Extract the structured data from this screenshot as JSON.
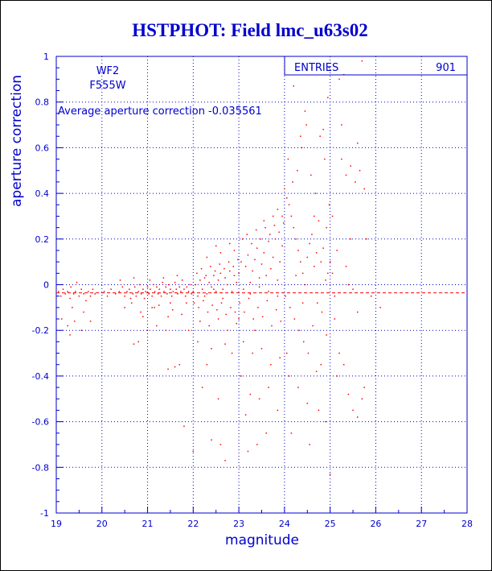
{
  "chart_data": {
    "type": "scatter",
    "title": "HSTPHOT: Field lmc_u63s02",
    "xlabel": "magnitude",
    "ylabel": "aperture correction",
    "xlim": [
      19,
      28
    ],
    "ylim": [
      -1,
      1
    ],
    "xticks": [
      "19",
      "20",
      "21",
      "22",
      "23",
      "24",
      "25",
      "26",
      "27",
      "28"
    ],
    "yticks": [
      "-1",
      "-0.8",
      "-0.6",
      "-0.4",
      "-0.2",
      "0",
      "0.2",
      "0.4",
      "0.6",
      "0.8",
      "1"
    ],
    "grid": true,
    "stats_box": {
      "entries_label": "ENTRIES",
      "entries_value": "901",
      "placement": "top-right"
    },
    "annotations": {
      "camera": "WF2",
      "filter": "F555W",
      "average_text": "Average aperture correction -0.035561"
    },
    "average_line": -0.035561,
    "points": [
      [
        19.05,
        -0.03
      ],
      [
        19.1,
        -0.05
      ],
      [
        19.15,
        -0.02
      ],
      [
        19.2,
        -0.04
      ],
      [
        19.25,
        -0.03
      ],
      [
        19.3,
        -0.06
      ],
      [
        19.32,
        -0.01
      ],
      [
        19.38,
        -0.04
      ],
      [
        19.42,
        -0.03
      ],
      [
        19.45,
        0.01
      ],
      [
        19.5,
        -0.05
      ],
      [
        19.55,
        -0.02
      ],
      [
        19.6,
        -0.04
      ],
      [
        19.65,
        -0.07
      ],
      [
        19.7,
        -0.03
      ],
      [
        19.75,
        -0.05
      ],
      [
        19.8,
        -0.02
      ],
      [
        19.85,
        -0.04
      ],
      [
        19.12,
        -0.15
      ],
      [
        19.25,
        -0.18
      ],
      [
        19.4,
        -0.16
      ],
      [
        19.55,
        -0.2
      ],
      [
        19.35,
        -0.1
      ],
      [
        19.6,
        -0.12
      ],
      [
        19.3,
        -0.22
      ],
      [
        19.75,
        -0.16
      ],
      [
        20.05,
        -0.03
      ],
      [
        20.12,
        -0.05
      ],
      [
        20.2,
        -0.02
      ],
      [
        20.3,
        -0.04
      ],
      [
        20.38,
        -0.03
      ],
      [
        20.45,
        -0.01
      ],
      [
        20.5,
        -0.05
      ],
      [
        20.55,
        -0.03
      ],
      [
        20.6,
        -0.02
      ],
      [
        20.63,
        -0.06
      ],
      [
        20.68,
        -0.04
      ],
      [
        20.72,
        -0.01
      ],
      [
        20.75,
        -0.05
      ],
      [
        20.8,
        -0.03
      ],
      [
        20.83,
        0.0
      ],
      [
        20.86,
        -0.04
      ],
      [
        20.9,
        -0.02
      ],
      [
        20.93,
        -0.06
      ],
      [
        20.96,
        -0.03
      ],
      [
        21.0,
        -0.01
      ],
      [
        21.03,
        -0.04
      ],
      [
        21.06,
        -0.02
      ],
      [
        21.1,
        -0.05
      ],
      [
        21.13,
        0.0
      ],
      [
        21.16,
        -0.03
      ],
      [
        21.2,
        -0.01
      ],
      [
        21.23,
        -0.04
      ],
      [
        21.26,
        -0.02
      ],
      [
        21.3,
        -0.05
      ],
      [
        21.33,
        0.01
      ],
      [
        21.36,
        -0.03
      ],
      [
        21.4,
        -0.01
      ],
      [
        21.43,
        -0.04
      ],
      [
        21.46,
        0.0
      ],
      [
        21.5,
        -0.02
      ],
      [
        21.53,
        -0.05
      ],
      [
        21.56,
        -0.03
      ],
      [
        21.6,
        0.01
      ],
      [
        21.63,
        -0.02
      ],
      [
        21.66,
        -0.04
      ],
      [
        21.7,
        -0.01
      ],
      [
        21.73,
        -0.03
      ],
      [
        21.76,
        0.02
      ],
      [
        21.8,
        -0.02
      ],
      [
        21.83,
        -0.05
      ],
      [
        21.86,
        -0.01
      ],
      [
        21.9,
        -0.03
      ],
      [
        21.93,
        0.0
      ],
      [
        21.96,
        -0.04
      ],
      [
        20.4,
        0.02
      ],
      [
        20.7,
        0.03
      ],
      [
        21.05,
        0.02
      ],
      [
        21.35,
        0.03
      ],
      [
        21.65,
        0.04
      ],
      [
        20.5,
        -0.1
      ],
      [
        20.65,
        -0.08
      ],
      [
        20.85,
        -0.12
      ],
      [
        21.1,
        -0.1
      ],
      [
        21.25,
        -0.09
      ],
      [
        21.45,
        -0.14
      ],
      [
        21.55,
        -0.11
      ],
      [
        21.75,
        -0.13
      ],
      [
        21.85,
        -0.08
      ],
      [
        20.9,
        -0.14
      ],
      [
        21.5,
        -0.08
      ],
      [
        21.2,
        -0.18
      ],
      [
        20.8,
        -0.25
      ],
      [
        20.7,
        -0.26
      ],
      [
        21.0,
        -0.2
      ],
      [
        21.45,
        -0.37
      ],
      [
        21.6,
        -0.36
      ],
      [
        21.8,
        -0.62
      ],
      [
        21.7,
        -0.35
      ],
      [
        21.9,
        -0.2
      ],
      [
        21.4,
        -0.2
      ],
      [
        21.15,
        -0.1
      ],
      [
        22.0,
        -0.03
      ],
      [
        22.05,
        0.0
      ],
      [
        22.1,
        -0.05
      ],
      [
        22.15,
        0.02
      ],
      [
        22.2,
        -0.02
      ],
      [
        22.25,
        0.03
      ],
      [
        22.3,
        -0.04
      ],
      [
        22.35,
        0.01
      ],
      [
        22.4,
        -0.01
      ],
      [
        22.45,
        0.04
      ],
      [
        22.5,
        -0.03
      ],
      [
        22.55,
        0.02
      ],
      [
        22.6,
        0.05
      ],
      [
        22.65,
        -0.02
      ],
      [
        22.7,
        0.03
      ],
      [
        22.75,
        0.0
      ],
      [
        22.8,
        0.06
      ],
      [
        22.85,
        -0.03
      ],
      [
        22.9,
        0.04
      ],
      [
        22.95,
        0.01
      ],
      [
        22.02,
        -0.08
      ],
      [
        22.12,
        -0.1
      ],
      [
        22.22,
        -0.07
      ],
      [
        22.32,
        -0.12
      ],
      [
        22.42,
        -0.09
      ],
      [
        22.52,
        -0.11
      ],
      [
        22.62,
        -0.08
      ],
      [
        22.72,
        -0.13
      ],
      [
        22.82,
        -0.1
      ],
      [
        22.92,
        -0.12
      ],
      [
        22.08,
        0.05
      ],
      [
        22.18,
        0.07
      ],
      [
        22.28,
        0.04
      ],
      [
        22.38,
        0.08
      ],
      [
        22.48,
        0.06
      ],
      [
        22.58,
        0.09
      ],
      [
        22.68,
        0.07
      ],
      [
        22.78,
        0.1
      ],
      [
        22.88,
        0.08
      ],
      [
        22.98,
        0.11
      ],
      [
        22.15,
        -0.16
      ],
      [
        22.35,
        -0.18
      ],
      [
        22.55,
        -0.15
      ],
      [
        22.75,
        -0.2
      ],
      [
        22.95,
        -0.17
      ],
      [
        22.3,
        0.12
      ],
      [
        22.6,
        0.14
      ],
      [
        22.9,
        0.15
      ],
      [
        22.1,
        -0.25
      ],
      [
        22.4,
        -0.28
      ],
      [
        22.7,
        -0.26
      ],
      [
        22.2,
        -0.45
      ],
      [
        22.55,
        -0.5
      ],
      [
        22.85,
        -0.3
      ],
      [
        22.6,
        -0.7
      ],
      [
        22.4,
        -0.68
      ],
      [
        22.7,
        -0.77
      ],
      [
        22.0,
        -0.73
      ],
      [
        22.3,
        -0.35
      ],
      [
        22.5,
        0.17
      ],
      [
        22.8,
        0.18
      ],
      [
        22.25,
        -0.05
      ],
      [
        22.65,
        -0.06
      ],
      [
        22.45,
        -0.02
      ],
      [
        23.0,
        0.05
      ],
      [
        23.05,
        0.1
      ],
      [
        23.1,
        -0.02
      ],
      [
        23.15,
        0.08
      ],
      [
        23.2,
        0.13
      ],
      [
        23.25,
        -0.04
      ],
      [
        23.3,
        0.06
      ],
      [
        23.35,
        0.11
      ],
      [
        23.4,
        0.16
      ],
      [
        23.45,
        -0.01
      ],
      [
        23.5,
        0.09
      ],
      [
        23.55,
        0.14
      ],
      [
        23.6,
        0.04
      ],
      [
        23.65,
        0.19
      ],
      [
        23.7,
        0.07
      ],
      [
        23.75,
        0.12
      ],
      [
        23.8,
        0.2
      ],
      [
        23.85,
        0.02
      ],
      [
        23.9,
        0.1
      ],
      [
        23.95,
        0.17
      ],
      [
        23.02,
        -0.08
      ],
      [
        23.12,
        -0.12
      ],
      [
        23.22,
        -0.06
      ],
      [
        23.32,
        -0.15
      ],
      [
        23.42,
        -0.1
      ],
      [
        23.52,
        -0.14
      ],
      [
        23.62,
        -0.07
      ],
      [
        23.72,
        -0.18
      ],
      [
        23.82,
        -0.11
      ],
      [
        23.92,
        -0.16
      ],
      [
        23.08,
        0.2
      ],
      [
        23.18,
        0.22
      ],
      [
        23.28,
        0.18
      ],
      [
        23.38,
        0.24
      ],
      [
        23.48,
        0.2
      ],
      [
        23.58,
        0.25
      ],
      [
        23.68,
        0.22
      ],
      [
        23.78,
        0.26
      ],
      [
        23.88,
        0.23
      ],
      [
        23.98,
        0.27
      ],
      [
        23.1,
        -0.25
      ],
      [
        23.3,
        -0.3
      ],
      [
        23.5,
        -0.28
      ],
      [
        23.7,
        -0.35
      ],
      [
        23.9,
        -0.32
      ],
      [
        23.05,
        -0.4
      ],
      [
        23.25,
        -0.48
      ],
      [
        23.45,
        -0.5
      ],
      [
        23.65,
        -0.45
      ],
      [
        23.85,
        -0.55
      ],
      [
        23.15,
        -0.57
      ],
      [
        23.4,
        -0.7
      ],
      [
        23.6,
        -0.65
      ],
      [
        23.2,
        -0.73
      ],
      [
        23.75,
        0.3
      ],
      [
        23.85,
        0.33
      ],
      [
        23.95,
        0.3
      ],
      [
        23.55,
        0.28
      ],
      [
        23.35,
        -0.2
      ],
      [
        23.0,
        -0.15
      ],
      [
        23.45,
        0.03
      ],
      [
        23.65,
        -0.03
      ],
      [
        23.25,
        0.01
      ],
      [
        23.85,
        -0.05
      ],
      [
        24.0,
        0.42
      ],
      [
        24.05,
        0.38
      ],
      [
        24.1,
        0.35
      ],
      [
        24.15,
        0.3
      ],
      [
        24.2,
        0.25
      ],
      [
        24.25,
        0.2
      ],
      [
        24.3,
        0.15
      ],
      [
        24.35,
        0.1
      ],
      [
        24.4,
        0.05
      ],
      [
        24.45,
        0.0
      ],
      [
        24.5,
        0.12
      ],
      [
        24.55,
        0.18
      ],
      [
        24.6,
        0.22
      ],
      [
        24.65,
        0.08
      ],
      [
        24.7,
        0.14
      ],
      [
        24.75,
        0.28
      ],
      [
        24.8,
        0.1
      ],
      [
        24.85,
        0.16
      ],
      [
        24.9,
        0.02
      ],
      [
        24.95,
        0.05
      ],
      [
        24.02,
        -0.05
      ],
      [
        24.12,
        -0.1
      ],
      [
        24.22,
        -0.15
      ],
      [
        24.32,
        -0.2
      ],
      [
        24.42,
        -0.25
      ],
      [
        24.52,
        -0.3
      ],
      [
        24.62,
        -0.18
      ],
      [
        24.72,
        -0.08
      ],
      [
        24.82,
        -0.12
      ],
      [
        24.92,
        -0.22
      ],
      [
        24.08,
        0.55
      ],
      [
        24.18,
        0.45
      ],
      [
        24.28,
        0.5
      ],
      [
        24.38,
        0.6
      ],
      [
        24.48,
        0.7
      ],
      [
        24.58,
        0.48
      ],
      [
        24.68,
        0.4
      ],
      [
        24.78,
        0.65
      ],
      [
        24.88,
        0.55
      ],
      [
        24.98,
        0.35
      ],
      [
        24.1,
        -0.4
      ],
      [
        24.3,
        -0.45
      ],
      [
        24.5,
        -0.52
      ],
      [
        24.7,
        -0.38
      ],
      [
        24.9,
        -0.6
      ],
      [
        24.2,
        0.87
      ],
      [
        24.45,
        0.76
      ],
      [
        24.6,
        0.95
      ],
      [
        24.85,
        0.68
      ],
      [
        24.95,
        0.82
      ],
      [
        24.15,
        -0.65
      ],
      [
        24.55,
        -0.7
      ],
      [
        24.75,
        -0.55
      ],
      [
        24.35,
        0.65
      ],
      [
        24.65,
        0.3
      ],
      [
        24.4,
        -0.08
      ],
      [
        24.25,
        0.04
      ],
      [
        24.8,
        -0.35
      ],
      [
        24.05,
        -0.3
      ],
      [
        24.92,
        0.25
      ],
      [
        25.0,
        0.1
      ],
      [
        25.05,
        0.05
      ],
      [
        25.1,
        -0.05
      ],
      [
        25.15,
        0.15
      ],
      [
        25.2,
        0.9
      ],
      [
        25.3,
        0.92
      ],
      [
        25.25,
        0.55
      ],
      [
        25.35,
        0.48
      ],
      [
        25.45,
        0.52
      ],
      [
        25.55,
        0.45
      ],
      [
        25.6,
        0.62
      ],
      [
        25.65,
        0.5
      ],
      [
        25.7,
        0.98
      ],
      [
        25.75,
        0.42
      ],
      [
        25.8,
        0.2
      ],
      [
        25.1,
        -0.15
      ],
      [
        25.2,
        -0.3
      ],
      [
        25.3,
        -0.35
      ],
      [
        25.4,
        -0.48
      ],
      [
        25.5,
        -0.55
      ],
      [
        25.6,
        -0.58
      ],
      [
        25.7,
        -0.5
      ],
      [
        25.75,
        -0.45
      ],
      [
        25.05,
        0.3
      ],
      [
        25.4,
        0.0
      ],
      [
        25.5,
        -0.02
      ],
      [
        25.9,
        -0.05
      ],
      [
        26.1,
        -0.1
      ],
      [
        25.0,
        -0.83
      ],
      [
        25.15,
        -0.4
      ],
      [
        25.35,
        0.08
      ],
      [
        25.6,
        -0.12
      ],
      [
        25.25,
        0.7
      ],
      [
        25.45,
        0.2
      ],
      [
        24.98,
        0.95
      ]
    ]
  }
}
